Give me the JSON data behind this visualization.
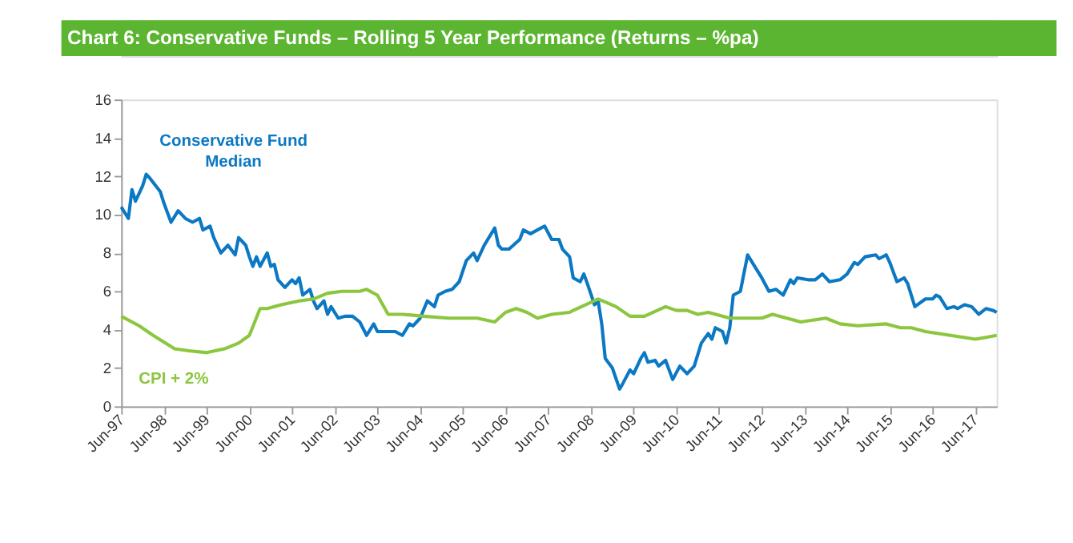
{
  "chart_data": {
    "type": "line",
    "title": "Chart 6:  Conservative Funds – Rolling 5 Year Performance (Returns – %pa)",
    "ylim": [
      0,
      16
    ],
    "yticks": [
      0,
      2,
      4,
      6,
      8,
      10,
      12,
      14,
      16
    ],
    "xlim": [
      "1997-06",
      "2017-12"
    ],
    "xticks": [
      {
        "value": "1997-06",
        "label": "Jun-97"
      },
      {
        "value": "1998-06",
        "label": "Jun-98"
      },
      {
        "value": "1999-06",
        "label": "Jun-99"
      },
      {
        "value": "2000-06",
        "label": "Jun-00"
      },
      {
        "value": "2001-06",
        "label": "Jun-01"
      },
      {
        "value": "2002-06",
        "label": "Jun-02"
      },
      {
        "value": "2003-06",
        "label": "Jun-03"
      },
      {
        "value": "2004-06",
        "label": "Jun-04"
      },
      {
        "value": "2005-06",
        "label": "Jun-05"
      },
      {
        "value": "2006-06",
        "label": "Jun-06"
      },
      {
        "value": "2007-06",
        "label": "Jun-07"
      },
      {
        "value": "2008-06",
        "label": "Jun-08"
      },
      {
        "value": "2009-06",
        "label": "Jun-09"
      },
      {
        "value": "2010-06",
        "label": "Jun-10"
      },
      {
        "value": "2011-06",
        "label": "Jun-11"
      },
      {
        "value": "2012-06",
        "label": "Jun-12"
      },
      {
        "value": "2013-06",
        "label": "Jun-13"
      },
      {
        "value": "2014-06",
        "label": "Jun-14"
      },
      {
        "value": "2015-06",
        "label": "Jun-15"
      },
      {
        "value": "2016-06",
        "label": "Jun-16"
      },
      {
        "value": "2017-06",
        "label": "Jun-17"
      }
    ],
    "grid": false,
    "legend": false,
    "marker": "none",
    "line_style": "solid",
    "series": [
      {
        "name": "Conservative Fund Median",
        "color": "#0b78c4",
        "x": [
          "1997-06",
          "1997-08",
          "1997-09",
          "1997-10",
          "1997-12",
          "1998-01",
          "1998-02",
          "1998-05",
          "1998-06",
          "1998-08",
          "1998-10",
          "1998-12",
          "1999-02",
          "1999-04",
          "1999-05",
          "1999-07",
          "1999-08",
          "1999-10",
          "1999-12",
          "2000-02",
          "2000-03",
          "2000-05",
          "2000-06",
          "2000-07",
          "2000-08",
          "2000-09",
          "2000-11",
          "2000-12",
          "2001-01",
          "2001-02",
          "2001-04",
          "2001-06",
          "2001-07",
          "2001-08",
          "2001-09",
          "2001-11",
          "2001-12",
          "2002-01",
          "2002-03",
          "2002-04",
          "2002-05",
          "2002-07",
          "2002-09",
          "2002-11",
          "2003-01",
          "2003-03",
          "2003-05",
          "2003-06",
          "2003-09",
          "2003-11",
          "2004-01",
          "2004-03",
          "2004-04",
          "2004-06",
          "2004-08",
          "2004-10",
          "2004-11",
          "2005-01",
          "2005-03",
          "2005-05",
          "2005-07",
          "2005-09",
          "2005-10",
          "2005-12",
          "2006-03",
          "2006-04",
          "2006-05",
          "2006-07",
          "2006-10",
          "2006-11",
          "2007-01",
          "2007-03",
          "2007-05",
          "2007-07",
          "2007-09",
          "2007-10",
          "2007-12",
          "2008-01",
          "2008-03",
          "2008-04",
          "2008-05",
          "2008-07",
          "2008-08",
          "2008-09",
          "2008-10",
          "2008-12",
          "2009-02",
          "2009-03",
          "2009-05",
          "2009-06",
          "2009-08",
          "2009-09",
          "2009-10",
          "2009-12",
          "2010-01",
          "2010-03",
          "2010-05",
          "2010-07",
          "2010-09",
          "2010-11",
          "2011-01",
          "2011-03",
          "2011-04",
          "2011-05",
          "2011-07",
          "2011-08",
          "2011-09",
          "2011-10",
          "2011-12",
          "2012-02",
          "2012-04",
          "2012-06",
          "2012-08",
          "2012-10",
          "2012-12",
          "2013-02",
          "2013-03",
          "2013-04",
          "2013-07",
          "2013-09",
          "2013-11",
          "2014-01",
          "2014-04",
          "2014-06",
          "2014-08",
          "2014-09",
          "2014-11",
          "2015-02",
          "2015-03",
          "2015-05",
          "2015-06",
          "2015-08",
          "2015-10",
          "2015-11",
          "2016-01",
          "2016-04",
          "2016-06",
          "2016-07",
          "2016-08",
          "2016-10",
          "2016-12",
          "2017-01",
          "2017-03",
          "2017-05",
          "2017-07",
          "2017-09",
          "2017-11",
          "2017-12"
        ],
        "values": [
          10.4,
          9.8,
          11.3,
          10.7,
          11.5,
          12.1,
          11.9,
          11.2,
          10.6,
          9.6,
          10.2,
          9.8,
          9.6,
          9.8,
          9.2,
          9.4,
          8.8,
          8.0,
          8.4,
          7.9,
          8.8,
          8.4,
          7.8,
          7.3,
          7.8,
          7.3,
          8.0,
          7.3,
          7.4,
          6.6,
          6.2,
          6.6,
          6.4,
          6.7,
          5.8,
          6.1,
          5.5,
          5.1,
          5.5,
          4.8,
          5.2,
          4.6,
          4.7,
          4.7,
          4.4,
          3.7,
          4.3,
          3.9,
          3.9,
          3.9,
          3.7,
          4.3,
          4.2,
          4.6,
          5.5,
          5.2,
          5.8,
          6.0,
          6.1,
          6.5,
          7.6,
          8.0,
          7.6,
          8.4,
          9.3,
          8.4,
          8.2,
          8.2,
          8.7,
          9.2,
          9.0,
          9.2,
          9.4,
          8.7,
          8.7,
          8.2,
          7.8,
          6.7,
          6.5,
          6.9,
          6.4,
          5.3,
          5.5,
          4.3,
          2.5,
          2.0,
          0.9,
          1.2,
          1.9,
          1.7,
          2.5,
          2.8,
          2.3,
          2.4,
          2.1,
          2.4,
          1.4,
          2.1,
          1.7,
          2.1,
          3.3,
          3.8,
          3.5,
          4.1,
          3.9,
          3.3,
          4.1,
          5.8,
          6.0,
          7.9,
          7.3,
          6.7,
          6.0,
          6.1,
          5.8,
          6.6,
          6.4,
          6.7,
          6.6,
          6.6,
          6.9,
          6.5,
          6.6,
          6.9,
          7.5,
          7.4,
          7.8,
          7.9,
          7.7,
          7.9,
          7.5,
          6.5,
          6.7,
          6.4,
          5.2,
          5.6,
          5.6,
          5.8,
          5.7,
          5.1,
          5.2,
          5.1,
          5.3,
          5.2,
          4.8,
          5.1,
          5.0,
          4.9
        ]
      },
      {
        "name": "CPI + 2%",
        "color": "#8cc63f",
        "x": [
          "1997-06",
          "1997-11",
          "1998-03",
          "1998-09",
          "1999-01",
          "1999-06",
          "1999-11",
          "2000-03",
          "2000-06",
          "2000-09",
          "2000-11",
          "2001-03",
          "2001-08",
          "2001-12",
          "2002-04",
          "2002-08",
          "2003-01",
          "2003-03",
          "2003-06",
          "2003-09",
          "2004-01",
          "2004-07",
          "2005-02",
          "2005-06",
          "2005-10",
          "2006-03",
          "2006-06",
          "2006-09",
          "2006-12",
          "2007-03",
          "2007-07",
          "2007-12",
          "2008-01",
          "2008-08",
          "2009-01",
          "2009-05",
          "2009-09",
          "2010-03",
          "2010-06",
          "2010-09",
          "2010-12",
          "2011-03",
          "2011-09",
          "2012-06",
          "2012-09",
          "2013-05",
          "2013-12",
          "2014-04",
          "2014-09",
          "2015-05",
          "2015-09",
          "2015-12",
          "2016-04",
          "2016-11",
          "2017-06",
          "2017-09",
          "2017-12"
        ],
        "values": [
          4.7,
          4.2,
          3.7,
          3.0,
          2.9,
          2.8,
          3.0,
          3.3,
          3.7,
          5.1,
          5.1,
          5.3,
          5.5,
          5.6,
          5.9,
          6.0,
          6.0,
          6.1,
          5.8,
          4.8,
          4.8,
          4.7,
          4.6,
          4.6,
          4.6,
          4.4,
          4.9,
          5.1,
          4.9,
          4.6,
          4.8,
          4.9,
          5.0,
          5.6,
          5.2,
          4.7,
          4.7,
          5.2,
          5.0,
          5.0,
          4.8,
          4.9,
          4.6,
          4.6,
          4.8,
          4.4,
          4.6,
          4.3,
          4.2,
          4.3,
          4.1,
          4.1,
          3.9,
          3.7,
          3.5,
          3.6,
          3.7
        ]
      }
    ]
  }
}
